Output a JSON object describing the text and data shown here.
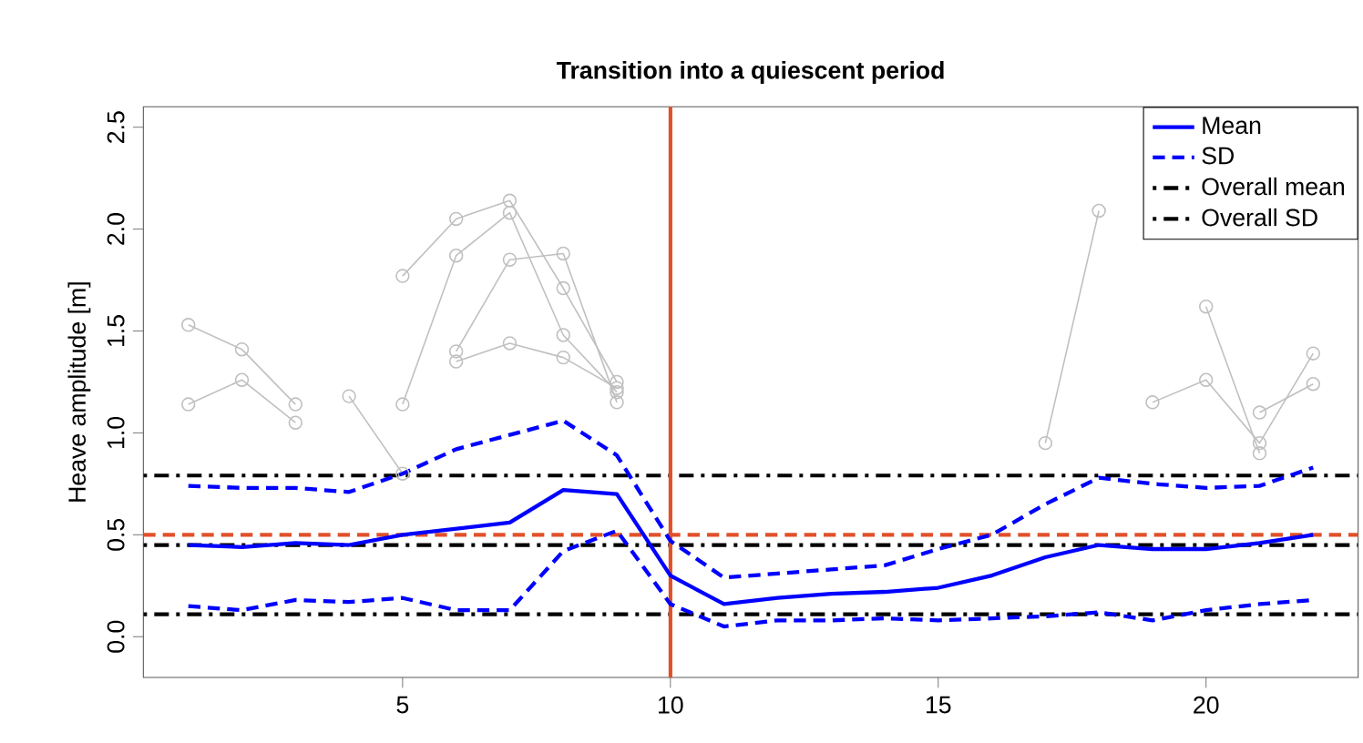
{
  "chart_data": {
    "type": "line",
    "title": "Transition into a quiescent period",
    "ylabel": "Heave amplitude [m]",
    "x": [
      1,
      2,
      3,
      4,
      5,
      6,
      7,
      8,
      9,
      10,
      11,
      12,
      13,
      14,
      15,
      16,
      17,
      18,
      19,
      20,
      21,
      22
    ],
    "xlim": [
      0.16,
      22.84
    ],
    "xticks": [
      5,
      10,
      15,
      20
    ],
    "ylim": [
      -0.2,
      2.6
    ],
    "yticks": [
      {
        "value": 0,
        "label": "0.0"
      },
      0.5,
      {
        "value": 1,
        "label": "1.0"
      },
      1.5,
      {
        "value": 2,
        "label": "2.0"
      },
      2.5
    ],
    "legend": "top right",
    "series": [
      {
        "color": "#c0c0c0",
        "marker": "circle",
        "values": [
          1.53,
          1.41,
          1.14,
          null,
          null,
          null,
          null,
          null,
          null,
          null,
          null,
          null,
          null,
          null,
          null,
          null,
          null,
          null,
          null,
          null,
          null,
          null
        ]
      },
      {
        "color": "#c0c0c0",
        "marker": "circle",
        "values": [
          1.14,
          1.26,
          1.05,
          null,
          null,
          null,
          null,
          null,
          null,
          null,
          null,
          null,
          null,
          null,
          null,
          null,
          null,
          null,
          null,
          null,
          null,
          null
        ]
      },
      {
        "color": "#c0c0c0",
        "marker": "circle",
        "values": [
          null,
          null,
          null,
          1.18,
          0.8,
          null,
          null,
          null,
          null,
          null,
          null,
          null,
          null,
          null,
          null,
          null,
          null,
          null,
          null,
          null,
          null,
          null
        ]
      },
      {
        "color": "#c0c0c0",
        "marker": "circle",
        "values": [
          null,
          null,
          null,
          null,
          1.77,
          2.05,
          2.14,
          1.71,
          1.25,
          null,
          null,
          null,
          null,
          null,
          null,
          null,
          null,
          null,
          null,
          null,
          null,
          null
        ]
      },
      {
        "color": "#c0c0c0",
        "marker": "circle",
        "values": [
          null,
          null,
          null,
          null,
          1.14,
          1.87,
          2.08,
          1.48,
          1.2,
          null,
          null,
          null,
          null,
          null,
          null,
          null,
          null,
          null,
          null,
          null,
          null,
          null
        ]
      },
      {
        "color": "#c0c0c0",
        "marker": "circle",
        "values": [
          null,
          null,
          null,
          null,
          null,
          1.4,
          1.85,
          1.88,
          1.15,
          null,
          null,
          null,
          null,
          null,
          null,
          null,
          null,
          null,
          null,
          null,
          null,
          null
        ]
      },
      {
        "color": "#c0c0c0",
        "marker": "circle",
        "values": [
          null,
          null,
          null,
          null,
          null,
          1.35,
          1.44,
          1.37,
          1.22,
          null,
          null,
          null,
          null,
          null,
          null,
          null,
          null,
          null,
          null,
          null,
          null,
          null
        ]
      },
      {
        "color": "#c0c0c0",
        "marker": "circle",
        "values": [
          null,
          null,
          null,
          null,
          null,
          null,
          null,
          null,
          null,
          null,
          null,
          null,
          null,
          null,
          null,
          null,
          0.95,
          2.09,
          null,
          1.62,
          0.9,
          null
        ]
      },
      {
        "color": "#c0c0c0",
        "marker": "circle",
        "values": [
          null,
          null,
          null,
          null,
          null,
          null,
          null,
          null,
          null,
          null,
          null,
          null,
          null,
          null,
          null,
          null,
          null,
          null,
          1.15,
          1.26,
          0.95,
          1.39
        ]
      },
      {
        "color": "#c0c0c0",
        "marker": "circle",
        "values": [
          null,
          null,
          null,
          null,
          null,
          null,
          null,
          null,
          null,
          null,
          null,
          null,
          null,
          null,
          null,
          null,
          null,
          null,
          null,
          null,
          1.1,
          1.24
        ]
      },
      {
        "name": "Mean",
        "color": "#0000ff",
        "line_style": "solid",
        "values": [
          0.45,
          0.44,
          0.46,
          0.45,
          0.5,
          0.53,
          0.56,
          0.72,
          0.7,
          0.3,
          0.16,
          0.19,
          0.21,
          0.22,
          0.24,
          0.3,
          0.39,
          0.45,
          0.43,
          0.43,
          0.46,
          0.5
        ]
      },
      {
        "name": "SD",
        "color": "#0000ff",
        "line_style": "dashed",
        "values": [
          0.74,
          0.73,
          0.73,
          0.71,
          0.8,
          0.92,
          0.99,
          1.06,
          0.89,
          0.47,
          0.29,
          0.31,
          0.33,
          0.35,
          0.43,
          0.5,
          0.65,
          0.78,
          0.75,
          0.73,
          0.74,
          0.83
        ]
      },
      {
        "color": "#0000ff",
        "line_style": "dashed",
        "values": [
          0.15,
          0.13,
          0.18,
          0.17,
          0.19,
          0.13,
          0.13,
          0.42,
          0.52,
          0.16,
          0.05,
          0.08,
          0.08,
          0.09,
          0.08,
          0.09,
          0.1,
          0.12,
          0.08,
          0.13,
          0.16,
          0.18
        ]
      }
    ],
    "ref_lines": [
      {
        "axis": "y",
        "value": 0.45,
        "label": "Overall mean",
        "color": "#000000",
        "line_style": "dashdot"
      },
      {
        "axis": "y",
        "value": 0.79,
        "label": "Overall SD",
        "color": "#000000",
        "line_style": "dashdot"
      },
      {
        "axis": "y",
        "value": 0.11,
        "color": "#000000",
        "line_style": "dashdot"
      },
      {
        "axis": "y",
        "value": 0.5,
        "color": "#e0502a",
        "line_style": "dashed"
      },
      {
        "axis": "x",
        "value": 10,
        "color": "#e0502a",
        "line_style": "solid"
      }
    ]
  }
}
